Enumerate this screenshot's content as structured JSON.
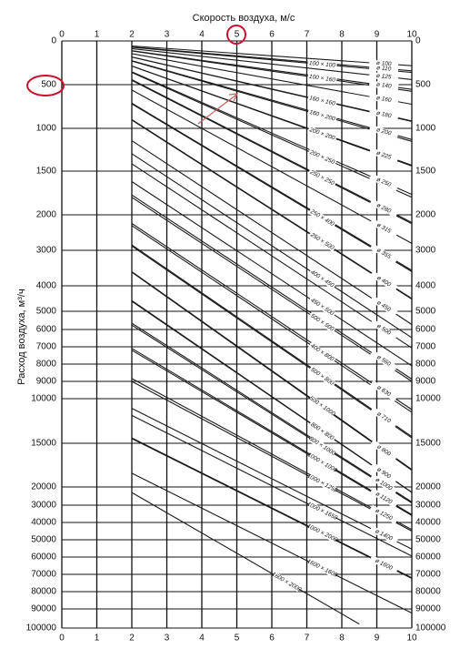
{
  "chart_data": {
    "type": "line",
    "title": "Скорость воздуха, м/с",
    "y_label": "Расход воздуха, м³/ч",
    "xlim": [
      0,
      10
    ],
    "xticks": [
      0,
      1,
      2,
      3,
      4,
      5,
      6,
      7,
      8,
      9,
      10
    ],
    "ylim": [
      0,
      100000
    ],
    "yticks": [
      0,
      500,
      1000,
      1500,
      2000,
      3000,
      4000,
      5000,
      6000,
      7000,
      8000,
      9000,
      10000,
      15000,
      20000,
      30000,
      40000,
      50000,
      60000,
      70000,
      80000,
      90000,
      100000
    ],
    "grid": true,
    "color": "#1a1a1a",
    "series": [
      {
        "name": "100 × 100",
        "x": [
          2,
          10
        ],
        "values": [
          72,
          360
        ]
      },
      {
        "name": "100 × 160",
        "x": [
          2,
          10
        ],
        "values": [
          115,
          576
        ]
      },
      {
        "name": "160 × 160",
        "x": [
          2,
          10
        ],
        "values": [
          184,
          922
        ]
      },
      {
        "name": "160 × 200",
        "x": [
          2,
          10
        ],
        "values": [
          230,
          1152
        ]
      },
      {
        "name": "200 × 200",
        "x": [
          2,
          10
        ],
        "values": [
          288,
          1440
        ]
      },
      {
        "name": "200 × 250",
        "x": [
          2,
          10
        ],
        "values": [
          360,
          1800
        ]
      },
      {
        "name": "250 × 250",
        "x": [
          2,
          10
        ],
        "values": [
          450,
          2250
        ]
      },
      {
        "name": "250 × 400",
        "x": [
          2,
          10
        ],
        "values": [
          720,
          3600
        ]
      },
      {
        "name": "250 × 500",
        "x": [
          2,
          10
        ],
        "values": [
          900,
          4500
        ]
      },
      {
        "name": "400 × 450",
        "x": [
          2,
          10
        ],
        "values": [
          1296,
          6480
        ]
      },
      {
        "name": "450 × 500",
        "x": [
          2,
          10
        ],
        "values": [
          1620,
          8100
        ]
      },
      {
        "name": "500 × 500",
        "x": [
          2,
          10
        ],
        "values": [
          1800,
          9000
        ]
      },
      {
        "name": "400 × 800",
        "x": [
          2,
          10
        ],
        "values": [
          2304,
          11520
        ]
      },
      {
        "name": "500 × 800",
        "x": [
          2,
          10
        ],
        "values": [
          2880,
          14400
        ]
      },
      {
        "name": "500 × 1000",
        "x": [
          2,
          10
        ],
        "values": [
          3600,
          18000
        ]
      },
      {
        "name": "800 × 800",
        "x": [
          2,
          10
        ],
        "values": [
          4608,
          23040
        ]
      },
      {
        "name": "800 × 1000",
        "x": [
          2,
          10
        ],
        "values": [
          5760,
          28800
        ]
      },
      {
        "name": "1000 × 1000",
        "x": [
          2,
          10
        ],
        "values": [
          7200,
          36000
        ]
      },
      {
        "name": "1000 × 1250",
        "x": [
          2,
          10
        ],
        "values": [
          9000,
          45000
        ]
      },
      {
        "name": "1000 × 1650",
        "x": [
          2,
          10
        ],
        "values": [
          11880,
          59400
        ]
      },
      {
        "name": "1000 × 2000",
        "x": [
          2,
          10
        ],
        "values": [
          14400,
          72000
        ]
      },
      {
        "name": "1600 × 1600",
        "x": [
          2,
          10
        ],
        "values": [
          18432,
          92160
        ]
      },
      {
        "name": "1600 × 2000",
        "x": [
          2,
          8.5
        ],
        "values": [
          23040,
          97920
        ]
      }
    ],
    "round_series": [
      {
        "name": "ø 100",
        "x": [
          2,
          10
        ],
        "values": [
          57,
          283
        ]
      },
      {
        "name": "ø 110",
        "x": [
          2,
          10
        ],
        "values": [
          68,
          342
        ]
      },
      {
        "name": "ø 125",
        "x": [
          2,
          10
        ],
        "values": [
          88,
          442
        ]
      },
      {
        "name": "ø 140",
        "x": [
          2,
          10
        ],
        "values": [
          111,
          554
        ]
      },
      {
        "name": "ø 160",
        "x": [
          2,
          10
        ],
        "values": [
          145,
          724
        ]
      },
      {
        "name": "ø 180",
        "x": [
          2,
          10
        ],
        "values": [
          183,
          916
        ]
      },
      {
        "name": "ø 200",
        "x": [
          2,
          10
        ],
        "values": [
          226,
          1131
        ]
      },
      {
        "name": "ø 225",
        "x": [
          2,
          10
        ],
        "values": [
          286,
          1431
        ]
      },
      {
        "name": "ø 250",
        "x": [
          2,
          10
        ],
        "values": [
          353,
          1767
        ]
      },
      {
        "name": "ø 280",
        "x": [
          2,
          10
        ],
        "values": [
          443,
          2217
        ]
      },
      {
        "name": "ø 315",
        "x": [
          2,
          10
        ],
        "values": [
          561,
          2806
        ]
      },
      {
        "name": "ø 355",
        "x": [
          2,
          10
        ],
        "values": [
          713,
          3563
        ]
      },
      {
        "name": "ø 400",
        "x": [
          2,
          10
        ],
        "values": [
          905,
          4524
        ]
      },
      {
        "name": "ø 450",
        "x": [
          2,
          10
        ],
        "values": [
          1145,
          5726
        ]
      },
      {
        "name": "ø 500",
        "x": [
          2,
          10
        ],
        "values": [
          1414,
          7069
        ]
      },
      {
        "name": "ø 560",
        "x": [
          2,
          10
        ],
        "values": [
          1773,
          8867
        ]
      },
      {
        "name": "ø 630",
        "x": [
          2,
          10
        ],
        "values": [
          2244,
          11222
        ]
      },
      {
        "name": "ø 710",
        "x": [
          2,
          10
        ],
        "values": [
          2850,
          14252
        ]
      },
      {
        "name": "ø 800",
        "x": [
          2,
          10
        ],
        "values": [
          3619,
          18096
        ]
      },
      {
        "name": "ø 900",
        "x": [
          2,
          10
        ],
        "values": [
          4580,
          22902
        ]
      },
      {
        "name": "ø 1000",
        "x": [
          2,
          10
        ],
        "values": [
          5655,
          28274
        ]
      },
      {
        "name": "ø 1120",
        "x": [
          2,
          10
        ],
        "values": [
          7094,
          35468
        ]
      },
      {
        "name": "ø 1250",
        "x": [
          2,
          10
        ],
        "values": [
          8836,
          44179
        ]
      },
      {
        "name": "ø 1400",
        "x": [
          2,
          10
        ],
        "values": [
          11084,
          55418
        ]
      },
      {
        "name": "ø 1600",
        "x": [
          2,
          10
        ],
        "values": [
          14476,
          72382
        ]
      }
    ]
  }
}
